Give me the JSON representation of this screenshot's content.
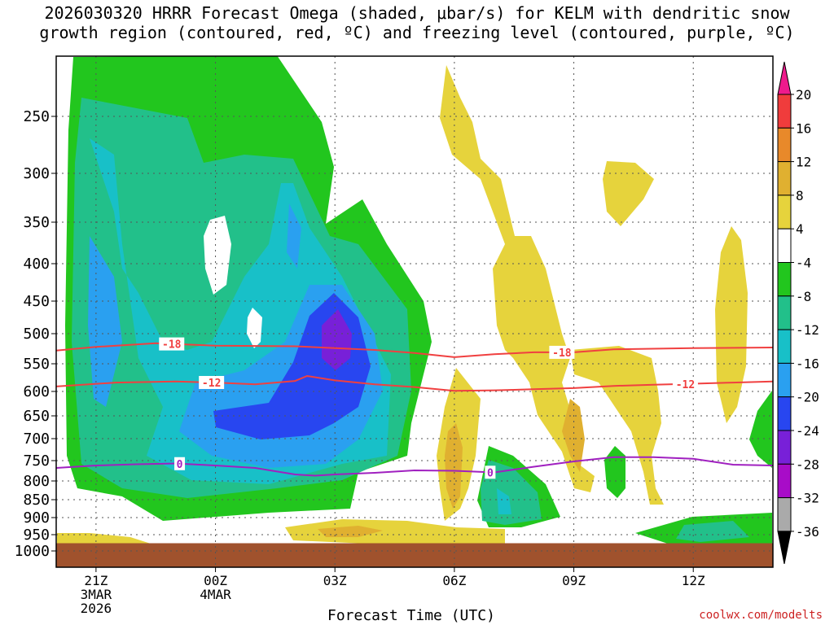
{
  "title_line1": "2026030320 HRRR Forecast Omega (shaded, μbar/s) for KELM with dendritic snow",
  "title_line2": "growth region (contoured, red, ºC) and freezing level (contoured, purple, ºC)",
  "credit": "coolwx.com/modelts",
  "chart_data": {
    "type": "heatmap",
    "title": "2026030320 HRRR Forecast Omega (shaded, μbar/s) for KELM with dendritic snow growth region (contoured, red, ºC) and freezing level (contoured, purple, ºC)",
    "xlabel": "Forecast Time (UTC)",
    "ylabel": "",
    "x_ticks": [
      {
        "hour": 1,
        "lines": [
          "21Z",
          "3MAR",
          "2026"
        ]
      },
      {
        "hour": 4,
        "lines": [
          "00Z",
          "4MAR"
        ]
      },
      {
        "hour": 7,
        "lines": [
          "03Z"
        ]
      },
      {
        "hour": 10,
        "lines": [
          "06Z"
        ]
      },
      {
        "hour": 13,
        "lines": [
          "09Z"
        ]
      },
      {
        "hour": 16,
        "lines": [
          "12Z"
        ]
      }
    ],
    "x_range_hours": [
      0,
      18
    ],
    "y_ticks_hpa": [
      250,
      300,
      350,
      400,
      450,
      500,
      550,
      600,
      650,
      700,
      750,
      800,
      850,
      900,
      950,
      1000
    ],
    "y_range_hpa": [
      200,
      1000
    ],
    "colorbar": {
      "labels": [
        "20",
        "16",
        "12",
        "8",
        "4",
        "-4",
        "-8",
        "-12",
        "-16",
        "-20",
        "-24",
        "-28",
        "-32",
        "-36"
      ],
      "colors": [
        "#ee1a8c",
        "#f03c3c",
        "#e8892a",
        "#e0b030",
        "#e6d33c",
        "#ffffff",
        "#22c61e",
        "#22c08a",
        "#18c0c8",
        "#2aa0f0",
        "#2846f0",
        "#7820d8",
        "#a80cc8",
        "#aaaaaa",
        "#000000"
      ]
    },
    "contours": [
      {
        "name": "-18",
        "color": "#f04040",
        "label_hours": [
          2.9,
          12.7
        ],
        "points": [
          [
            0,
            528
          ],
          [
            1,
            522
          ],
          [
            2.5,
            516
          ],
          [
            4,
            520
          ],
          [
            6,
            521
          ],
          [
            8,
            527
          ],
          [
            9,
            532
          ],
          [
            10,
            539
          ],
          [
            11,
            534
          ],
          [
            12,
            531
          ],
          [
            13,
            531
          ],
          [
            14,
            526
          ],
          [
            15,
            525
          ],
          [
            16,
            524
          ],
          [
            18,
            523
          ]
        ]
      },
      {
        "name": "-12",
        "color": "#f04040",
        "label_hours": [
          3.9,
          15.8
        ],
        "points": [
          [
            0,
            591
          ],
          [
            1.5,
            584
          ],
          [
            3,
            582
          ],
          [
            4,
            584
          ],
          [
            5,
            587
          ],
          [
            6,
            581
          ],
          [
            6.3,
            572
          ],
          [
            7,
            580
          ],
          [
            8,
            587
          ],
          [
            9,
            592
          ],
          [
            10,
            599
          ],
          [
            11,
            598
          ],
          [
            12,
            596
          ],
          [
            13,
            594
          ],
          [
            14,
            590
          ],
          [
            15,
            588
          ],
          [
            16,
            586
          ],
          [
            17,
            584
          ],
          [
            18,
            582
          ]
        ]
      },
      {
        "name": "0",
        "color": "#a020c0",
        "label_hours": [
          3.1,
          10.9
        ],
        "points": [
          [
            0,
            768
          ],
          [
            1,
            762
          ],
          [
            2,
            759
          ],
          [
            3,
            757
          ],
          [
            4,
            762
          ],
          [
            5,
            768
          ],
          [
            6,
            784
          ],
          [
            6.5,
            787
          ],
          [
            7,
            784
          ],
          [
            8,
            780
          ],
          [
            9,
            774
          ],
          [
            10,
            775
          ],
          [
            11,
            779
          ],
          [
            12,
            765
          ],
          [
            13,
            752
          ],
          [
            14,
            742
          ],
          [
            15,
            742
          ],
          [
            16,
            746
          ],
          [
            17,
            760
          ],
          [
            18,
            762
          ]
        ]
      }
    ],
    "omega_regions_note": "shaded omega field values in μbar/s"
  }
}
